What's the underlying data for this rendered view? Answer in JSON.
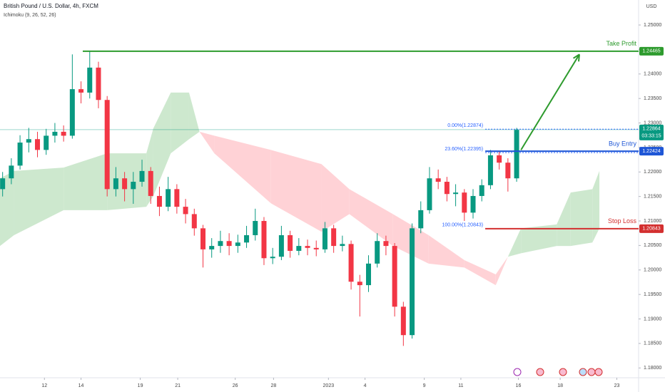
{
  "chart_data": {
    "type": "candlestick",
    "title": "British Pound / U.S. Dollar, 4h, FXCM",
    "indicator": "Ichimoku (9, 26, 52, 26)",
    "currency": "USD",
    "up_color": "#089981",
    "down_color": "#f23645",
    "x": [
      0,
      1,
      2,
      3,
      4,
      5,
      6,
      7,
      8,
      9,
      10,
      11,
      12,
      13,
      14,
      15,
      16,
      17,
      18,
      19,
      20,
      21,
      22,
      23,
      24,
      25,
      26,
      27,
      28,
      29,
      30,
      31,
      32,
      33,
      34,
      35,
      36,
      37,
      38,
      39,
      40,
      41,
      42,
      43,
      44,
      45,
      46,
      47,
      48,
      49,
      50,
      51,
      52,
      53,
      54,
      55,
      56,
      57,
      58,
      59
    ],
    "open": [
      1.2165,
      1.2187,
      1.2213,
      1.226,
      1.2267,
      1.2245,
      1.2274,
      1.2282,
      1.2274,
      1.2369,
      1.2362,
      1.2413,
      1.2347,
      1.2165,
      1.2187,
      1.2165,
      1.218,
      1.2202,
      1.2151,
      1.2129,
      1.2165,
      1.2129,
      1.2114,
      1.2085,
      1.2042,
      1.2049,
      1.2059,
      1.2049,
      1.2056,
      1.2071,
      1.21,
      1.2024,
      1.2027,
      1.2071,
      1.2039,
      1.2049,
      1.2045,
      1.2042,
      1.2085,
      1.2049,
      1.2053,
      1.1976,
      1.1969,
      1.2013,
      1.2059,
      1.2049,
      1.1925,
      1.1867,
      1.2085,
      1.2122,
      1.2187,
      1.218,
      1.2155,
      1.2158,
      1.2117,
      1.2151,
      1.2173,
      1.2234,
      1.2219,
      1.2187
    ],
    "high": [
      1.22,
      1.2228,
      1.2275,
      1.229,
      1.2282,
      1.2288,
      1.23,
      1.2295,
      1.244,
      1.2385,
      1.2446,
      1.2425,
      1.2355,
      1.221,
      1.22,
      1.22,
      1.2225,
      1.221,
      1.217,
      1.219,
      1.2175,
      1.2145,
      1.2125,
      1.2092,
      1.2065,
      1.208,
      1.2075,
      1.2072,
      1.209,
      1.2125,
      1.2108,
      1.2045,
      1.209,
      1.208,
      1.2065,
      1.2062,
      1.206,
      1.2098,
      1.2092,
      1.207,
      1.206,
      1.199,
      1.203,
      1.2075,
      1.207,
      1.2055,
      1.1935,
      1.2095,
      1.214,
      1.221,
      1.2205,
      1.219,
      1.2175,
      1.2165,
      1.2165,
      1.2185,
      1.2245,
      1.2242,
      1.2228,
      1.229
    ],
    "low": [
      1.215,
      1.2175,
      1.2205,
      1.224,
      1.223,
      1.2235,
      1.226,
      1.2262,
      1.2268,
      1.234,
      1.235,
      1.233,
      1.215,
      1.215,
      1.214,
      1.2135,
      1.217,
      1.2135,
      1.211,
      1.212,
      1.2115,
      1.2095,
      1.207,
      1.2005,
      1.2025,
      1.2035,
      1.203,
      1.2035,
      1.2045,
      1.206,
      1.201,
      1.2012,
      1.202,
      1.2025,
      1.203,
      1.203,
      1.2028,
      1.2035,
      1.2035,
      1.2038,
      1.196,
      1.1905,
      1.1955,
      1.2005,
      1.203,
      1.1905,
      1.1845,
      1.186,
      1.2075,
      1.2115,
      1.2165,
      1.214,
      1.213,
      1.21,
      1.2105,
      1.214,
      1.2165,
      1.2205,
      1.216,
      1.218
    ],
    "close": [
      1.2187,
      1.2213,
      1.226,
      1.2267,
      1.2245,
      1.2274,
      1.2282,
      1.2274,
      1.2369,
      1.2362,
      1.2413,
      1.2347,
      1.2165,
      1.2187,
      1.2165,
      1.218,
      1.2202,
      1.2151,
      1.2129,
      1.2165,
      1.2129,
      1.2114,
      1.2085,
      1.2042,
      1.2049,
      1.2059,
      1.2049,
      1.2056,
      1.2071,
      1.21,
      1.2024,
      1.2027,
      1.2071,
      1.2039,
      1.2049,
      1.2045,
      1.2042,
      1.2085,
      1.2049,
      1.2053,
      1.1976,
      1.1969,
      1.2013,
      1.2059,
      1.2049,
      1.1925,
      1.1867,
      1.2085,
      1.2122,
      1.2187,
      1.218,
      1.2155,
      1.2158,
      1.2117,
      1.2151,
      1.2173,
      1.2234,
      1.2219,
      1.2187,
      1.2286
    ],
    "cloud": {
      "x": [
        -0.3,
        1.3,
        7.0,
        12.0,
        16.5,
        17.3,
        19.3,
        21.4,
        22.6,
        24.3,
        30.8,
        36.6,
        39.8,
        44.8,
        48.9,
        53.0,
        56.6,
        58.0,
        59.5,
        63.6,
        65.2,
        67.7,
        68.5
      ],
      "span_a": [
        1.2187,
        1.2202,
        1.2209,
        1.2238,
        1.2238,
        1.2289,
        1.2362,
        1.2362,
        1.2282,
        1.2238,
        1.2136,
        1.2078,
        1.2114,
        1.2049,
        1.2013,
        1.2005,
        1.1969,
        1.2027,
        1.2085,
        1.2093,
        1.2158,
        1.2165,
        1.2202
      ],
      "span_b": [
        1.2049,
        1.2071,
        1.2122,
        1.2122,
        1.2129,
        1.2151,
        1.2238,
        1.2267,
        1.2282,
        1.2274,
        1.2245,
        1.2216,
        1.2165,
        1.2114,
        1.2071,
        1.202,
        1.1991,
        1.2027,
        1.2034,
        1.2049,
        1.2049,
        1.2056,
        1.2085
      ],
      "up_color": "#c8e6c9",
      "down_color": "#ffcdd2"
    },
    "levels": [
      {
        "name": "Take Profit",
        "value": 1.24465,
        "start": 9.2,
        "color": "#2e9b2e"
      },
      {
        "name": "Buy Entry",
        "value": 1.22424,
        "start": 55.4,
        "color": "#1e56d6"
      },
      {
        "name": "Stop Loss",
        "value": 1.20843,
        "start": 55.4,
        "color": "#d32f2f"
      }
    ],
    "fib": [
      {
        "label": "0.00%(1.22874)",
        "value": 1.22874
      },
      {
        "label": "23.60%(1.22395)",
        "value": 1.22395
      },
      {
        "label": "100.00%(1.20843)",
        "value": 1.20843
      }
    ],
    "fib_start": 55.4,
    "arrow": {
      "x": [
        59.5,
        66.2
      ],
      "y": [
        1.2245,
        1.244
      ],
      "color": "#2e9b2e"
    },
    "last_price": 1.22864,
    "countdown": "03:33:15",
    "last_color": "#089981",
    "xlim": [
      -0.3,
      73
    ],
    "xticks": [
      {
        "value": 4.8,
        "label": "12"
      },
      {
        "value": 9.0,
        "label": "14"
      },
      {
        "value": 15.8,
        "label": "19"
      },
      {
        "value": 20.1,
        "label": "21"
      },
      {
        "value": 26.7,
        "label": "26"
      },
      {
        "value": 31.1,
        "label": "28"
      },
      {
        "value": 37.4,
        "label": "2023"
      },
      {
        "value": 41.6,
        "label": "4"
      },
      {
        "value": 48.4,
        "label": "9"
      },
      {
        "value": 52.6,
        "label": "11"
      },
      {
        "value": 59.2,
        "label": "16"
      },
      {
        "value": 64.0,
        "label": "18"
      },
      {
        "value": 70.5,
        "label": "23"
      }
    ],
    "ylim": [
      1.178,
      1.2551
    ],
    "yticks": [
      {
        "value": 1.18,
        "label": "1.18000"
      },
      {
        "value": 1.185,
        "label": "1.18500"
      },
      {
        "value": 1.19,
        "label": "1.19000"
      },
      {
        "value": 1.195,
        "label": "1.19500"
      },
      {
        "value": 1.2,
        "label": "1.20000"
      },
      {
        "value": 1.205,
        "label": "1.20500"
      },
      {
        "value": 1.21,
        "label": "1.21000"
      },
      {
        "value": 1.215,
        "label": "1.21500"
      },
      {
        "value": 1.22,
        "label": "1.22000"
      },
      {
        "value": 1.225,
        "label": "1.22500"
      },
      {
        "value": 1.23,
        "label": "1.23000"
      },
      {
        "value": 1.235,
        "label": "1.23500"
      },
      {
        "value": 1.24,
        "label": "1.24000"
      },
      {
        "value": 1.245,
        "label": "1.24500"
      },
      {
        "value": 1.25,
        "label": "1.25000"
      }
    ]
  }
}
